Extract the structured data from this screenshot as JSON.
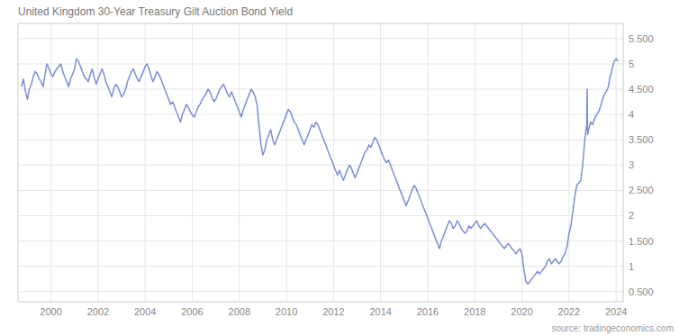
{
  "chart_data": {
    "type": "line",
    "title": "United Kingdom 30-Year Treasury Gilt Auction Bond Yield",
    "annotations": [
      "source: tradingeconomics.com"
    ],
    "color": "#7b8ed4",
    "grid": true,
    "xlim": [
      1998.6,
      2024.3
    ],
    "xticks": [
      2000,
      2002,
      2004,
      2006,
      2008,
      2010,
      2012,
      2014,
      2016,
      2018,
      2020,
      2022,
      2024
    ],
    "ylim": [
      0.3,
      5.8
    ],
    "yticks": [
      {
        "value": 0.5,
        "label": "0.500"
      },
      1,
      {
        "value": 1.5,
        "label": "1.500"
      },
      2,
      {
        "value": 2.5,
        "label": "2.500"
      },
      3,
      {
        "value": 3.5,
        "label": "3.500"
      },
      4,
      {
        "value": 4.5,
        "label": "4.500"
      },
      5,
      {
        "value": 5.5,
        "label": "5.500"
      }
    ],
    "x": [
      1998.75,
      1998.83,
      1998.92,
      1999.0,
      1999.08,
      1999.17,
      1999.25,
      1999.33,
      1999.42,
      1999.5,
      1999.58,
      1999.67,
      1999.75,
      1999.83,
      1999.92,
      2000.0,
      2000.08,
      2000.17,
      2000.25,
      2000.33,
      2000.42,
      2000.5,
      2000.58,
      2000.67,
      2000.75,
      2000.83,
      2000.92,
      2001.0,
      2001.08,
      2001.17,
      2001.25,
      2001.33,
      2001.42,
      2001.5,
      2001.58,
      2001.67,
      2001.75,
      2001.83,
      2001.92,
      2002.0,
      2002.08,
      2002.17,
      2002.25,
      2002.33,
      2002.42,
      2002.5,
      2002.58,
      2002.67,
      2002.75,
      2002.83,
      2002.92,
      2003.0,
      2003.08,
      2003.17,
      2003.25,
      2003.33,
      2003.42,
      2003.5,
      2003.58,
      2003.67,
      2003.75,
      2003.83,
      2003.92,
      2004.0,
      2004.08,
      2004.17,
      2004.25,
      2004.33,
      2004.42,
      2004.5,
      2004.58,
      2004.67,
      2004.75,
      2004.83,
      2004.92,
      2005.0,
      2005.08,
      2005.17,
      2005.25,
      2005.33,
      2005.42,
      2005.5,
      2005.58,
      2005.67,
      2005.75,
      2005.83,
      2005.92,
      2006.0,
      2006.08,
      2006.17,
      2006.25,
      2006.33,
      2006.42,
      2006.5,
      2006.58,
      2006.67,
      2006.75,
      2006.83,
      2006.92,
      2007.0,
      2007.08,
      2007.17,
      2007.25,
      2007.33,
      2007.42,
      2007.5,
      2007.58,
      2007.67,
      2007.75,
      2007.83,
      2007.92,
      2008.0,
      2008.08,
      2008.17,
      2008.25,
      2008.33,
      2008.42,
      2008.5,
      2008.58,
      2008.67,
      2008.75,
      2008.83,
      2008.92,
      2009.0,
      2009.08,
      2009.17,
      2009.25,
      2009.33,
      2009.42,
      2009.5,
      2009.58,
      2009.67,
      2009.75,
      2009.83,
      2009.92,
      2010.0,
      2010.08,
      2010.17,
      2010.25,
      2010.33,
      2010.42,
      2010.5,
      2010.58,
      2010.67,
      2010.75,
      2010.83,
      2010.92,
      2011.0,
      2011.08,
      2011.17,
      2011.25,
      2011.33,
      2011.42,
      2011.5,
      2011.58,
      2011.67,
      2011.75,
      2011.83,
      2011.92,
      2012.0,
      2012.08,
      2012.17,
      2012.25,
      2012.33,
      2012.42,
      2012.5,
      2012.58,
      2012.67,
      2012.75,
      2012.83,
      2012.92,
      2013.0,
      2013.08,
      2013.17,
      2013.25,
      2013.33,
      2013.42,
      2013.5,
      2013.58,
      2013.67,
      2013.75,
      2013.83,
      2013.92,
      2014.0,
      2014.08,
      2014.17,
      2014.25,
      2014.33,
      2014.42,
      2014.5,
      2014.58,
      2014.67,
      2014.75,
      2014.83,
      2014.92,
      2015.0,
      2015.08,
      2015.17,
      2015.25,
      2015.33,
      2015.42,
      2015.5,
      2015.58,
      2015.67,
      2015.75,
      2015.83,
      2015.92,
      2016.0,
      2016.08,
      2016.17,
      2016.25,
      2016.33,
      2016.42,
      2016.5,
      2016.58,
      2016.67,
      2016.75,
      2016.83,
      2016.92,
      2017.0,
      2017.08,
      2017.17,
      2017.25,
      2017.33,
      2017.42,
      2017.5,
      2017.58,
      2017.67,
      2017.75,
      2017.83,
      2017.92,
      2018.0,
      2018.08,
      2018.17,
      2018.25,
      2018.33,
      2018.42,
      2018.5,
      2018.58,
      2018.67,
      2018.75,
      2018.83,
      2018.92,
      2019.0,
      2019.08,
      2019.17,
      2019.25,
      2019.33,
      2019.42,
      2019.5,
      2019.58,
      2019.67,
      2019.75,
      2019.83,
      2019.92,
      2020.0,
      2020.08,
      2020.17,
      2020.25,
      2020.33,
      2020.42,
      2020.5,
      2020.58,
      2020.67,
      2020.75,
      2020.83,
      2020.92,
      2021.0,
      2021.08,
      2021.17,
      2021.25,
      2021.33,
      2021.42,
      2021.5,
      2021.58,
      2021.67,
      2021.75,
      2021.83,
      2021.92,
      2022.0,
      2022.08,
      2022.17,
      2022.25,
      2022.33,
      2022.42,
      2022.5,
      2022.58,
      2022.67,
      2022.75,
      2022.77,
      2022.79,
      2022.83,
      2022.92,
      2023.0,
      2023.08,
      2023.17,
      2023.25,
      2023.33,
      2023.42,
      2023.5,
      2023.58,
      2023.67,
      2023.75,
      2023.83,
      2023.92,
      2024.0,
      2024.08
    ],
    "values": [
      4.55,
      4.7,
      4.45,
      4.3,
      4.5,
      4.6,
      4.75,
      4.85,
      4.8,
      4.7,
      4.65,
      4.55,
      4.8,
      5.0,
      4.9,
      4.8,
      4.75,
      4.85,
      4.9,
      4.95,
      5.0,
      4.85,
      4.75,
      4.65,
      4.55,
      4.7,
      4.8,
      4.9,
      5.1,
      5.05,
      4.95,
      4.85,
      4.75,
      4.7,
      4.65,
      4.8,
      4.9,
      4.75,
      4.6,
      4.7,
      4.8,
      4.9,
      4.8,
      4.65,
      4.55,
      4.45,
      4.35,
      4.5,
      4.6,
      4.55,
      4.45,
      4.35,
      4.4,
      4.5,
      4.65,
      4.75,
      4.85,
      4.9,
      4.8,
      4.7,
      4.65,
      4.75,
      4.85,
      4.95,
      5.0,
      4.9,
      4.75,
      4.65,
      4.75,
      4.85,
      4.8,
      4.7,
      4.6,
      4.5,
      4.4,
      4.3,
      4.2,
      4.25,
      4.15,
      4.05,
      3.95,
      3.85,
      4.0,
      4.1,
      4.2,
      4.15,
      4.05,
      4.0,
      3.95,
      4.05,
      4.15,
      4.2,
      4.3,
      4.35,
      4.4,
      4.5,
      4.45,
      4.35,
      4.25,
      4.3,
      4.4,
      4.5,
      4.55,
      4.6,
      4.5,
      4.4,
      4.35,
      4.45,
      4.35,
      4.25,
      4.15,
      4.05,
      3.95,
      4.1,
      4.2,
      4.3,
      4.4,
      4.5,
      4.45,
      4.35,
      4.2,
      3.8,
      3.4,
      3.2,
      3.3,
      3.5,
      3.6,
      3.7,
      3.5,
      3.4,
      3.5,
      3.6,
      3.7,
      3.8,
      3.9,
      4.0,
      4.1,
      4.05,
      3.95,
      3.85,
      3.8,
      3.7,
      3.6,
      3.5,
      3.4,
      3.5,
      3.6,
      3.7,
      3.8,
      3.75,
      3.85,
      3.8,
      3.7,
      3.6,
      3.5,
      3.4,
      3.3,
      3.2,
      3.1,
      3.0,
      2.9,
      2.8,
      2.9,
      2.8,
      2.7,
      2.8,
      2.9,
      3.0,
      2.95,
      2.85,
      2.75,
      2.85,
      2.95,
      3.05,
      3.15,
      3.25,
      3.3,
      3.4,
      3.35,
      3.45,
      3.55,
      3.5,
      3.4,
      3.3,
      3.2,
      3.1,
      3.05,
      3.1,
      3.0,
      2.9,
      2.8,
      2.7,
      2.6,
      2.5,
      2.4,
      2.3,
      2.2,
      2.3,
      2.4,
      2.5,
      2.6,
      2.55,
      2.45,
      2.35,
      2.25,
      2.15,
      2.05,
      1.95,
      1.85,
      1.75,
      1.65,
      1.55,
      1.45,
      1.35,
      1.5,
      1.6,
      1.7,
      1.8,
      1.9,
      1.85,
      1.75,
      1.8,
      1.9,
      1.85,
      1.75,
      1.7,
      1.65,
      1.7,
      1.8,
      1.75,
      1.8,
      1.85,
      1.9,
      1.8,
      1.75,
      1.8,
      1.85,
      1.8,
      1.75,
      1.7,
      1.65,
      1.6,
      1.55,
      1.5,
      1.45,
      1.4,
      1.35,
      1.4,
      1.45,
      1.4,
      1.35,
      1.3,
      1.25,
      1.3,
      1.35,
      1.25,
      0.95,
      0.7,
      0.65,
      0.7,
      0.75,
      0.8,
      0.85,
      0.9,
      0.85,
      0.9,
      0.95,
      1.0,
      1.1,
      1.15,
      1.05,
      1.1,
      1.15,
      1.1,
      1.05,
      1.1,
      1.2,
      1.25,
      1.4,
      1.65,
      1.8,
      2.1,
      2.4,
      2.6,
      2.65,
      2.7,
      3.0,
      3.5,
      3.8,
      4.5,
      3.6,
      3.7,
      3.85,
      3.8,
      3.9,
      4.0,
      4.05,
      4.15,
      4.3,
      4.4,
      4.45,
      4.55,
      4.75,
      4.9,
      5.05,
      5.1,
      5.05
    ]
  }
}
